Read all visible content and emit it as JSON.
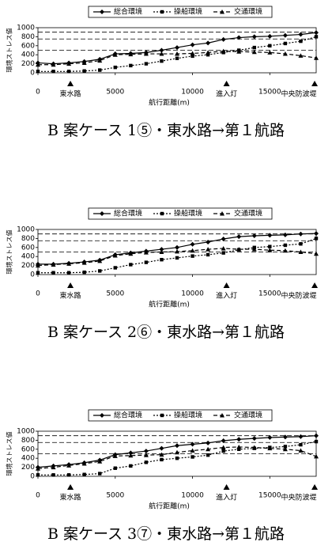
{
  "chart_data": [
    {
      "type": "line",
      "caption": "B 案ケース 1⑤・東水路→第１航路",
      "x_label": "航行距離(m)",
      "y_label": "環境ストレス値",
      "x": [
        0,
        1000,
        2000,
        3000,
        4000,
        5000,
        6000,
        7000,
        8000,
        9000,
        10000,
        11000,
        12000,
        13000,
        14000,
        15000,
        16000,
        17000,
        18000
      ],
      "series": [
        {
          "name": "総合環境",
          "color": "#000000",
          "values": [
            220,
            200,
            220,
            250,
            300,
            420,
            430,
            450,
            500,
            560,
            620,
            660,
            740,
            780,
            800,
            810,
            830,
            850,
            890
          ]
        },
        {
          "name": "操船環境",
          "color": "#000000",
          "values": [
            30,
            30,
            30,
            40,
            60,
            120,
            160,
            200,
            260,
            320,
            370,
            400,
            450,
            500,
            560,
            600,
            650,
            700,
            800
          ]
        },
        {
          "name": "交通環境",
          "color": "#000000",
          "values": [
            180,
            180,
            200,
            220,
            270,
            400,
            410,
            420,
            420,
            420,
            430,
            450,
            480,
            470,
            460,
            450,
            420,
            380,
            330
          ]
        }
      ],
      "reference_lines": [
        900,
        750,
        500
      ],
      "landmarks": [
        {
          "x": 2100,
          "label": "東水路"
        },
        {
          "x": 12200,
          "label": "進入灯"
        },
        {
          "x": 17900,
          "label": "中央防波堤"
        }
      ],
      "xlim": [
        0,
        18000
      ],
      "xticks": [
        0,
        5000,
        10000,
        15000
      ],
      "ylim": [
        0,
        1000
      ],
      "yticks": [
        0,
        200,
        400,
        600,
        800,
        1000
      ]
    },
    {
      "type": "line",
      "caption": "B 案ケース 2⑥・東水路→第１航路",
      "x_label": "航行距離(m)",
      "y_label": "環境ストレス値",
      "x": [
        0,
        1000,
        2000,
        3000,
        4000,
        5000,
        6000,
        7000,
        8000,
        9000,
        10000,
        11000,
        12000,
        13000,
        14000,
        15000,
        16000,
        17000,
        18000
      ],
      "series": [
        {
          "name": "総合環境",
          "color": "#000000",
          "values": [
            230,
            230,
            250,
            280,
            320,
            440,
            480,
            520,
            560,
            600,
            670,
            720,
            790,
            840,
            860,
            870,
            880,
            900,
            910
          ]
        },
        {
          "name": "操船環境",
          "color": "#000000",
          "values": [
            40,
            40,
            40,
            50,
            80,
            150,
            220,
            270,
            330,
            370,
            410,
            440,
            480,
            550,
            600,
            620,
            650,
            680,
            800
          ]
        },
        {
          "name": "交通環境",
          "color": "#000000",
          "values": [
            200,
            220,
            240,
            260,
            300,
            420,
            460,
            490,
            500,
            510,
            530,
            560,
            580,
            560,
            560,
            540,
            530,
            500,
            460
          ]
        }
      ],
      "reference_lines": [
        900,
        750,
        500
      ],
      "landmarks": [
        {
          "x": 2100,
          "label": "東水路"
        },
        {
          "x": 12200,
          "label": "進入灯"
        },
        {
          "x": 17900,
          "label": "中央防波堤"
        }
      ],
      "xlim": [
        0,
        18000
      ],
      "xticks": [
        0,
        5000,
        10000,
        15000
      ],
      "ylim": [
        0,
        1000
      ],
      "yticks": [
        0,
        200,
        400,
        600,
        800,
        1000
      ]
    },
    {
      "type": "line",
      "caption": "B 案ケース 3⑦・東水路→第１航路",
      "x_label": "航行距離(m)",
      "y_label": "環境ストレス値",
      "x": [
        0,
        1000,
        2000,
        3000,
        4000,
        5000,
        6000,
        7000,
        8000,
        9000,
        10000,
        11000,
        12000,
        13000,
        14000,
        15000,
        16000,
        17000,
        18000
      ],
      "series": [
        {
          "name": "総合環境",
          "color": "#000000",
          "values": [
            200,
            230,
            260,
            300,
            360,
            480,
            520,
            560,
            620,
            680,
            710,
            740,
            790,
            820,
            840,
            860,
            870,
            880,
            900
          ]
        },
        {
          "name": "操船環境",
          "color": "#000000",
          "values": [
            30,
            30,
            30,
            40,
            60,
            180,
            230,
            310,
            370,
            400,
            430,
            470,
            560,
            600,
            620,
            640,
            660,
            700,
            770
          ]
        },
        {
          "name": "交通環境",
          "color": "#000000",
          "values": [
            170,
            200,
            240,
            280,
            330,
            450,
            460,
            470,
            480,
            530,
            570,
            600,
            640,
            650,
            640,
            620,
            600,
            570,
            440
          ]
        }
      ],
      "reference_lines": [
        900,
        750,
        500
      ],
      "landmarks": [
        {
          "x": 2100,
          "label": "東水路"
        },
        {
          "x": 12200,
          "label": "進入灯"
        },
        {
          "x": 17900,
          "label": "中央防波堤"
        }
      ],
      "xlim": [
        0,
        18000
      ],
      "xticks": [
        0,
        5000,
        10000,
        15000
      ],
      "ylim": [
        0,
        1000
      ],
      "yticks": [
        0,
        200,
        400,
        600,
        800,
        1000
      ]
    }
  ]
}
